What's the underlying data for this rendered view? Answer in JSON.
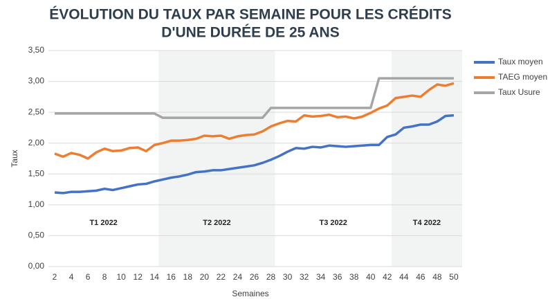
{
  "chart_data": {
    "type": "line",
    "title": [
      "ÉVOLUTION DU TAUX PAR SEMAINE POUR LES CRÉDITS",
      "D'UNE DURÉE DE 25 ANS"
    ],
    "x_label": "Semaines",
    "y_label": "Taux",
    "x": [
      2,
      3,
      4,
      5,
      6,
      7,
      8,
      9,
      10,
      11,
      12,
      13,
      14,
      15,
      16,
      17,
      18,
      19,
      20,
      21,
      22,
      23,
      24,
      25,
      26,
      27,
      28,
      29,
      30,
      31,
      32,
      33,
      34,
      35,
      36,
      37,
      38,
      39,
      40,
      41,
      42,
      43,
      44,
      45,
      46,
      47,
      48,
      49,
      50
    ],
    "series": [
      {
        "name": "Taux moyen",
        "color": "#4472c4",
        "values": [
          1.2,
          1.19,
          1.21,
          1.21,
          1.22,
          1.23,
          1.26,
          1.24,
          1.27,
          1.3,
          1.33,
          1.34,
          1.38,
          1.41,
          1.44,
          1.46,
          1.49,
          1.53,
          1.54,
          1.56,
          1.56,
          1.58,
          1.6,
          1.62,
          1.64,
          1.68,
          1.73,
          1.79,
          1.86,
          1.92,
          1.91,
          1.94,
          1.93,
          1.96,
          1.95,
          1.94,
          1.95,
          1.96,
          1.97,
          1.97,
          2.1,
          2.14,
          2.25,
          2.27,
          2.3,
          2.3,
          2.35,
          2.44,
          2.45
        ]
      },
      {
        "name": "TAEG moyen",
        "color": "#ed7d31",
        "values": [
          1.83,
          1.78,
          1.84,
          1.81,
          1.75,
          1.85,
          1.91,
          1.87,
          1.88,
          1.92,
          1.93,
          1.87,
          1.97,
          2.0,
          2.04,
          2.04,
          2.05,
          2.07,
          2.12,
          2.11,
          2.12,
          2.07,
          2.11,
          2.13,
          2.14,
          2.19,
          2.27,
          2.32,
          2.36,
          2.35,
          2.45,
          2.43,
          2.44,
          2.46,
          2.42,
          2.43,
          2.4,
          2.43,
          2.49,
          2.56,
          2.61,
          2.73,
          2.75,
          2.77,
          2.75,
          2.86,
          2.95,
          2.93,
          2.97
        ]
      },
      {
        "name": "Taux Usure",
        "color": "#a5a5a5",
        "values": [
          2.48,
          2.48,
          2.48,
          2.48,
          2.48,
          2.48,
          2.48,
          2.48,
          2.48,
          2.48,
          2.48,
          2.48,
          2.48,
          2.41,
          2.41,
          2.41,
          2.41,
          2.41,
          2.41,
          2.41,
          2.41,
          2.41,
          2.41,
          2.41,
          2.41,
          2.41,
          2.57,
          2.57,
          2.57,
          2.57,
          2.57,
          2.57,
          2.57,
          2.57,
          2.57,
          2.57,
          2.57,
          2.57,
          2.57,
          3.05,
          3.05,
          3.05,
          3.05,
          3.05,
          3.05,
          3.05,
          3.05,
          3.05,
          3.05
        ]
      }
    ],
    "bands": [
      {
        "label": "T1 2022",
        "from": 1.25,
        "to": 14.5,
        "shaded": false
      },
      {
        "label": "T2 2022",
        "from": 14.5,
        "to": 28.5,
        "shaded": true
      },
      {
        "label": "T3 2022",
        "from": 28.5,
        "to": 42.5,
        "shaded": false
      },
      {
        "label": "T4 2022",
        "from": 42.5,
        "to": 51,
        "shaded": true
      }
    ],
    "xlim": [
      1.25,
      51
    ],
    "xticks": [
      2,
      4,
      6,
      8,
      10,
      12,
      14,
      16,
      18,
      20,
      22,
      24,
      26,
      28,
      30,
      32,
      34,
      36,
      38,
      40,
      42,
      44,
      46,
      48,
      50
    ],
    "ylim": [
      0,
      3.5
    ],
    "yticks": [
      {
        "value": 0,
        "label": "0,00"
      },
      {
        "value": 0.5,
        "label": "0,50"
      },
      {
        "value": 1,
        "label": "1,00"
      },
      {
        "value": 1.5,
        "label": "1,50"
      },
      {
        "value": 2,
        "label": "2,00"
      },
      {
        "value": 2.5,
        "label": "2,50"
      },
      {
        "value": 3,
        "label": "3,00"
      },
      {
        "value": 3.5,
        "label": "3,50"
      }
    ],
    "grid": true,
    "legend": "right"
  }
}
